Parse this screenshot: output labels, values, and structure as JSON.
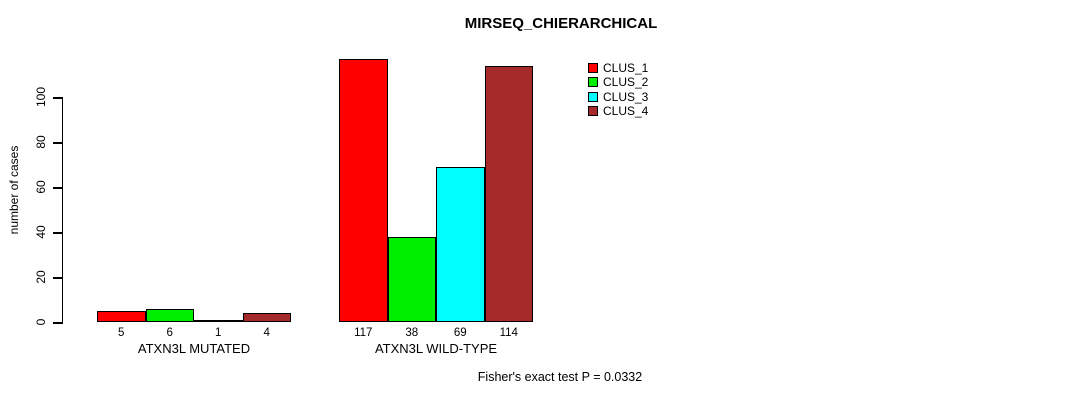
{
  "figure": {
    "title": "MIRSEQ_CHIERARCHICAL",
    "annotation": "Fisher's exact test P = 0.0332"
  },
  "chart_data": {
    "type": "bar",
    "title": "MIRSEQ_CHIERARCHICAL",
    "xlabel": "",
    "ylabel": "number of cases",
    "categories": [
      "ATXN3L MUTATED",
      "ATXN3L WILD-TYPE"
    ],
    "series": [
      {
        "name": "CLUS_1",
        "color": "#ff0000",
        "values": [
          5,
          117
        ]
      },
      {
        "name": "CLUS_2",
        "color": "#00ee00",
        "values": [
          6,
          38
        ]
      },
      {
        "name": "CLUS_3",
        "color": "#00ffff",
        "values": [
          1,
          69
        ]
      },
      {
        "name": "CLUS_4",
        "color": "#a52a2a",
        "values": [
          4,
          114
        ]
      }
    ],
    "bar_value_labels": [
      [
        5,
        6,
        1,
        4
      ],
      [
        117,
        38,
        69,
        114
      ]
    ],
    "yticks": [
      0,
      20,
      40,
      60,
      80,
      100
    ],
    "ylim": [
      0,
      100
    ],
    "grid": false,
    "bar_border_color": "#000000",
    "legend": {
      "position": "top-right",
      "entries": [
        "CLUS_1",
        "CLUS_2",
        "CLUS_3",
        "CLUS_4"
      ]
    },
    "annotation": "Fisher's exact test P = 0.0332"
  }
}
